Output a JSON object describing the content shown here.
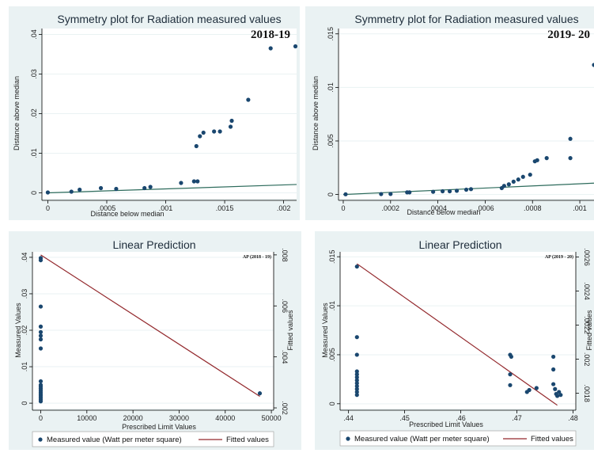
{
  "colors": {
    "panel_bg": "#eaf2f3",
    "marker": "#1a476f",
    "fit_green": "#2d6b5c",
    "fit_red": "#93282c"
  },
  "chart_data": [
    {
      "type": "scatter",
      "title": "Symmetry plot for Radiation measured values",
      "annotation": "2018-19",
      "xlabel": "Distance below median",
      "ylabel": "Distance above median",
      "xlim": [
        -5e-05,
        0.00211
      ],
      "ylim": [
        -0.0015,
        0.0415
      ],
      "xticks": [
        0,
        0.0005,
        0.001,
        0.0015,
        0.002
      ],
      "xtick_labels": [
        "0",
        ".0005",
        ".001",
        ".0015",
        ".002"
      ],
      "yticks": [
        0,
        0.01,
        0.02,
        0.03,
        0.04
      ],
      "ytick_labels": [
        "0",
        ".01",
        ".02",
        ".03",
        ".04"
      ],
      "line": {
        "x": [
          0,
          0.00211
        ],
        "y": [
          0,
          0.00211
        ]
      },
      "points": [
        [
          0.0,
          0.0001
        ],
        [
          0.0002,
          0.0003
        ],
        [
          0.00027,
          0.0008
        ],
        [
          0.00045,
          0.0012
        ],
        [
          0.00058,
          0.001
        ],
        [
          0.00082,
          0.0012
        ],
        [
          0.00087,
          0.0015
        ],
        [
          0.00113,
          0.0025
        ],
        [
          0.00124,
          0.0029
        ],
        [
          0.00127,
          0.0029
        ],
        [
          0.00126,
          0.0118
        ],
        [
          0.00129,
          0.0143
        ],
        [
          0.00132,
          0.0152
        ],
        [
          0.00141,
          0.0155
        ],
        [
          0.00146,
          0.0155
        ],
        [
          0.00155,
          0.0167
        ],
        [
          0.00156,
          0.0182
        ],
        [
          0.0017,
          0.0235
        ],
        [
          0.00189,
          0.0365
        ],
        [
          0.0021,
          0.037
        ]
      ]
    },
    {
      "type": "scatter",
      "title": "Symmetry plot for Radiation measured values",
      "annotation": "2019- 20",
      "xlabel": "Distance below median",
      "ylabel": "Distance above median",
      "xlim": [
        -2e-05,
        0.00106
      ],
      "ylim": [
        -0.0004,
        0.0155
      ],
      "xticks": [
        0,
        0.0002,
        0.0004,
        0.0006,
        0.0008,
        0.001
      ],
      "xtick_labels": [
        "0",
        ".0002",
        ".0004",
        ".0006",
        ".0008",
        ".001"
      ],
      "yticks": [
        0,
        0.005,
        0.01,
        0.015
      ],
      "ytick_labels": [
        "0",
        ".005",
        ".01",
        ".015"
      ],
      "line": {
        "x": [
          0,
          0.00106
        ],
        "y": [
          0,
          0.00106
        ]
      },
      "points": [
        [
          1e-05,
          2e-05
        ],
        [
          0.00016,
          4e-05
        ],
        [
          0.0002,
          5e-05
        ],
        [
          0.00027,
          0.0002
        ],
        [
          0.00028,
          0.0002
        ],
        [
          0.00038,
          0.00025
        ],
        [
          0.00042,
          0.0003
        ],
        [
          0.00045,
          0.0003
        ],
        [
          0.00048,
          0.00035
        ],
        [
          0.00052,
          0.00045
        ],
        [
          0.00054,
          0.0005
        ],
        [
          0.00067,
          0.0006
        ],
        [
          0.00068,
          0.0008
        ],
        [
          0.0007,
          0.00095
        ],
        [
          0.00072,
          0.0012
        ],
        [
          0.00074,
          0.0014
        ],
        [
          0.00076,
          0.00165
        ],
        [
          0.00079,
          0.00185
        ],
        [
          0.00081,
          0.0031
        ],
        [
          0.00082,
          0.0032
        ],
        [
          0.00086,
          0.0034
        ],
        [
          0.00096,
          0.0034
        ],
        [
          0.00096,
          0.0052
        ],
        [
          0.00106,
          0.0121
        ]
      ]
    },
    {
      "type": "scatter",
      "title": "Linear Prediction",
      "annotation": "AP (2018 - 19)",
      "xlabel": "Prescribed Limit Values",
      "ylabel": "Measured Values",
      "ylabel_right": "Fitted values",
      "xlim": [
        -1800,
        50500
      ],
      "ylim": [
        -0.0015,
        0.0415
      ],
      "y2lim": [
        0.00197,
        0.00812
      ],
      "xticks": [
        0,
        10000,
        20000,
        30000,
        40000,
        50000
      ],
      "xtick_labels": [
        "0",
        "10000",
        "20000",
        "30000",
        "40000",
        "50000"
      ],
      "yticks": [
        0,
        0.01,
        0.02,
        0.03,
        0.04
      ],
      "ytick_labels": [
        "0",
        ".01",
        ".02",
        ".03",
        ".04"
      ],
      "y2ticks": [
        0.002,
        0.004,
        0.006,
        0.008
      ],
      "y2tick_labels": [
        ".002",
        ".004",
        ".006",
        ".008"
      ],
      "fitted": {
        "x": [
          0,
          47500
        ],
        "y2": [
          0.008,
          0.00245
        ]
      },
      "points": [
        [
          0,
          0.0398
        ],
        [
          0,
          0.0392
        ],
        [
          0,
          0.0265
        ],
        [
          0,
          0.021
        ],
        [
          0,
          0.0195
        ],
        [
          0,
          0.0185
        ],
        [
          0,
          0.0175
        ],
        [
          0,
          0.015
        ],
        [
          0,
          0.006
        ],
        [
          0,
          0.005
        ],
        [
          0,
          0.0045
        ],
        [
          0,
          0.004
        ],
        [
          0,
          0.0035
        ],
        [
          0,
          0.003
        ],
        [
          0,
          0.0025
        ],
        [
          0,
          0.002
        ],
        [
          0,
          0.0015
        ],
        [
          0,
          0.001
        ],
        [
          0,
          0.0005
        ],
        [
          47500,
          0.0027
        ]
      ],
      "legend": [
        "Measured value (Watt per meter square)",
        "Fitted values"
      ]
    },
    {
      "type": "scatter",
      "title": "Linear Prediction",
      "annotation": "AP (2019 - 20)",
      "xlabel": "Prescribed Limit Values",
      "ylabel": "Measured Values",
      "ylabel_right": "Fitted values",
      "xlim": [
        0.4385,
        0.4805
      ],
      "ylim": [
        -0.0005,
        0.0155
      ],
      "y2lim": [
        0.00171,
        0.00263
      ],
      "xticks": [
        0.44,
        0.45,
        0.46,
        0.47,
        0.48
      ],
      "xtick_labels": [
        ".44",
        ".45",
        ".46",
        ".47",
        ".48"
      ],
      "yticks": [
        0,
        0.005,
        0.01,
        0.015
      ],
      "ytick_labels": [
        "0",
        ".005",
        ".01",
        ".015"
      ],
      "y2ticks": [
        0.0018,
        0.002,
        0.0022,
        0.0024,
        0.0026
      ],
      "y2tick_labels": [
        ".0018",
        ".002",
        ".0022",
        ".0024",
        ".0026"
      ],
      "fitted": {
        "x": [
          0.4415,
          0.4772
        ],
        "y2": [
          0.00256,
          0.00173
        ]
      },
      "points": [
        [
          0.4415,
          0.014
        ],
        [
          0.4415,
          0.0068
        ],
        [
          0.4415,
          0.005
        ],
        [
          0.4415,
          0.0033
        ],
        [
          0.4415,
          0.003
        ],
        [
          0.4415,
          0.0027
        ],
        [
          0.4415,
          0.0024
        ],
        [
          0.4415,
          0.0021
        ],
        [
          0.4415,
          0.0018
        ],
        [
          0.4415,
          0.0015
        ],
        [
          0.4415,
          0.0012
        ],
        [
          0.4415,
          0.0009
        ],
        [
          0.4688,
          0.005
        ],
        [
          0.469,
          0.0048
        ],
        [
          0.4688,
          0.003
        ],
        [
          0.4688,
          0.0019
        ],
        [
          0.4718,
          0.0012
        ],
        [
          0.4722,
          0.0014
        ],
        [
          0.4735,
          0.0016
        ],
        [
          0.4765,
          0.0048
        ],
        [
          0.4765,
          0.0035
        ],
        [
          0.4765,
          0.002
        ],
        [
          0.4768,
          0.0015
        ],
        [
          0.477,
          0.001
        ],
        [
          0.4772,
          0.0008
        ],
        [
          0.4775,
          0.0012
        ],
        [
          0.4778,
          0.0009
        ]
      ],
      "legend": [
        "Measured value (Watt per meter square)",
        "Fitted values"
      ]
    }
  ]
}
